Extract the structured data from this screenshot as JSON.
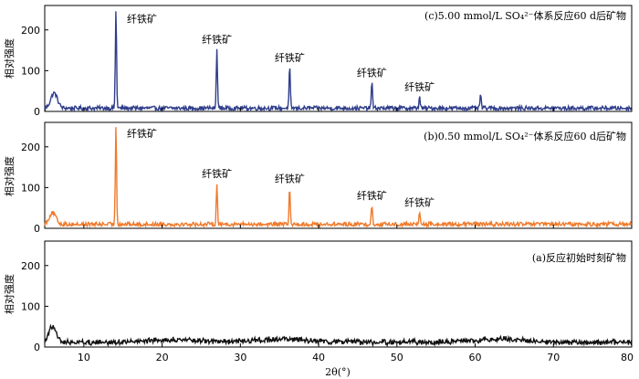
{
  "chart_data": [
    {
      "type": "line",
      "panel_label": "(c)5.00 mmol/L SO₄²⁻体系反应60 d后矿物",
      "color": "#2f3d8a",
      "ylabel": "相对强度",
      "xlim": [
        5,
        80
      ],
      "ylim": [
        0,
        260
      ],
      "yticks": [
        "0",
        "100",
        "200"
      ],
      "baseline": 8,
      "broad_hump": {
        "x": 6.2,
        "y": 45
      },
      "peaks": [
        {
          "x": 14.1,
          "y": 250,
          "label": "纤铁矿"
        },
        {
          "x": 27.0,
          "y": 155,
          "label": "纤铁矿"
        },
        {
          "x": 36.3,
          "y": 110,
          "label": "纤铁矿"
        },
        {
          "x": 46.8,
          "y": 73,
          "label": "纤铁矿"
        },
        {
          "x": 52.9,
          "y": 38,
          "label": "纤铁矿"
        },
        {
          "x": 60.7,
          "y": 42,
          "label": ""
        }
      ]
    },
    {
      "type": "line",
      "panel_label": "(b)0.50 mmol/L SO₄²⁻体系反应60 d后矿物",
      "color": "#f07a2b",
      "ylabel": "相对强度",
      "xlim": [
        5,
        80
      ],
      "ylim": [
        0,
        260
      ],
      "yticks": [
        "0",
        "100",
        "200"
      ],
      "baseline": 10,
      "broad_hump": {
        "x": 6.0,
        "y": 38
      },
      "peaks": [
        {
          "x": 14.1,
          "y": 255,
          "label": "纤铁矿"
        },
        {
          "x": 27.0,
          "y": 112,
          "label": "纤铁矿"
        },
        {
          "x": 36.3,
          "y": 100,
          "label": "纤铁矿"
        },
        {
          "x": 46.8,
          "y": 58,
          "label": "纤铁矿"
        },
        {
          "x": 52.9,
          "y": 42,
          "label": "纤铁矿"
        }
      ]
    },
    {
      "type": "line",
      "panel_label": "(a)反应初始时刻矿物",
      "color": "#111111",
      "ylabel": "相对强度",
      "xlabel": "2θ(°)",
      "xlim": [
        5,
        80
      ],
      "ylim": [
        0,
        260
      ],
      "yticks": [
        "0",
        "100",
        "200"
      ],
      "xticks": [
        "10",
        "20",
        "30",
        "40",
        "50",
        "60",
        "70",
        "80"
      ],
      "baseline": 12,
      "broad_hump": {
        "x": 6.0,
        "y": 52
      },
      "peaks": []
    }
  ]
}
